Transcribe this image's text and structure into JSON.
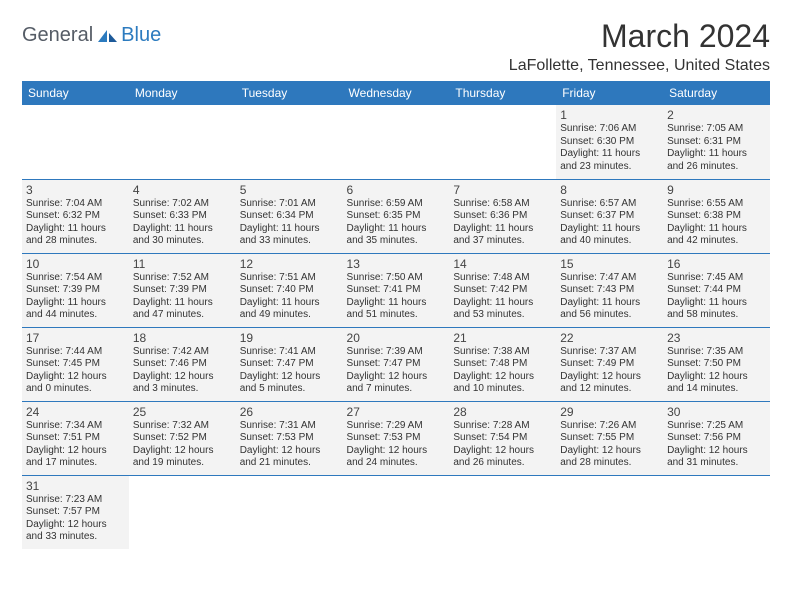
{
  "brand": {
    "part1": "General",
    "part2": "Blue"
  },
  "title": "March 2024",
  "location": "LaFollette, Tennessee, United States",
  "colors": {
    "header_bg": "#2e78bd",
    "header_text": "#ffffff",
    "cell_bg": "#f3f3f3",
    "border": "#2e78bd",
    "text": "#333333",
    "brand_gray": "#555c66",
    "brand_blue": "#2c7bbf"
  },
  "columns": [
    "Sunday",
    "Monday",
    "Tuesday",
    "Wednesday",
    "Thursday",
    "Friday",
    "Saturday"
  ],
  "weeks": [
    [
      null,
      null,
      null,
      null,
      null,
      {
        "d": "1",
        "sr": "7:06 AM",
        "ss": "6:30 PM",
        "dl": "11 hours and 23 minutes."
      },
      {
        "d": "2",
        "sr": "7:05 AM",
        "ss": "6:31 PM",
        "dl": "11 hours and 26 minutes."
      }
    ],
    [
      {
        "d": "3",
        "sr": "7:04 AM",
        "ss": "6:32 PM",
        "dl": "11 hours and 28 minutes."
      },
      {
        "d": "4",
        "sr": "7:02 AM",
        "ss": "6:33 PM",
        "dl": "11 hours and 30 minutes."
      },
      {
        "d": "5",
        "sr": "7:01 AM",
        "ss": "6:34 PM",
        "dl": "11 hours and 33 minutes."
      },
      {
        "d": "6",
        "sr": "6:59 AM",
        "ss": "6:35 PM",
        "dl": "11 hours and 35 minutes."
      },
      {
        "d": "7",
        "sr": "6:58 AM",
        "ss": "6:36 PM",
        "dl": "11 hours and 37 minutes."
      },
      {
        "d": "8",
        "sr": "6:57 AM",
        "ss": "6:37 PM",
        "dl": "11 hours and 40 minutes."
      },
      {
        "d": "9",
        "sr": "6:55 AM",
        "ss": "6:38 PM",
        "dl": "11 hours and 42 minutes."
      }
    ],
    [
      {
        "d": "10",
        "sr": "7:54 AM",
        "ss": "7:39 PM",
        "dl": "11 hours and 44 minutes."
      },
      {
        "d": "11",
        "sr": "7:52 AM",
        "ss": "7:39 PM",
        "dl": "11 hours and 47 minutes."
      },
      {
        "d": "12",
        "sr": "7:51 AM",
        "ss": "7:40 PM",
        "dl": "11 hours and 49 minutes."
      },
      {
        "d": "13",
        "sr": "7:50 AM",
        "ss": "7:41 PM",
        "dl": "11 hours and 51 minutes."
      },
      {
        "d": "14",
        "sr": "7:48 AM",
        "ss": "7:42 PM",
        "dl": "11 hours and 53 minutes."
      },
      {
        "d": "15",
        "sr": "7:47 AM",
        "ss": "7:43 PM",
        "dl": "11 hours and 56 minutes."
      },
      {
        "d": "16",
        "sr": "7:45 AM",
        "ss": "7:44 PM",
        "dl": "11 hours and 58 minutes."
      }
    ],
    [
      {
        "d": "17",
        "sr": "7:44 AM",
        "ss": "7:45 PM",
        "dl": "12 hours and 0 minutes."
      },
      {
        "d": "18",
        "sr": "7:42 AM",
        "ss": "7:46 PM",
        "dl": "12 hours and 3 minutes."
      },
      {
        "d": "19",
        "sr": "7:41 AM",
        "ss": "7:47 PM",
        "dl": "12 hours and 5 minutes."
      },
      {
        "d": "20",
        "sr": "7:39 AM",
        "ss": "7:47 PM",
        "dl": "12 hours and 7 minutes."
      },
      {
        "d": "21",
        "sr": "7:38 AM",
        "ss": "7:48 PM",
        "dl": "12 hours and 10 minutes."
      },
      {
        "d": "22",
        "sr": "7:37 AM",
        "ss": "7:49 PM",
        "dl": "12 hours and 12 minutes."
      },
      {
        "d": "23",
        "sr": "7:35 AM",
        "ss": "7:50 PM",
        "dl": "12 hours and 14 minutes."
      }
    ],
    [
      {
        "d": "24",
        "sr": "7:34 AM",
        "ss": "7:51 PM",
        "dl": "12 hours and 17 minutes."
      },
      {
        "d": "25",
        "sr": "7:32 AM",
        "ss": "7:52 PM",
        "dl": "12 hours and 19 minutes."
      },
      {
        "d": "26",
        "sr": "7:31 AM",
        "ss": "7:53 PM",
        "dl": "12 hours and 21 minutes."
      },
      {
        "d": "27",
        "sr": "7:29 AM",
        "ss": "7:53 PM",
        "dl": "12 hours and 24 minutes."
      },
      {
        "d": "28",
        "sr": "7:28 AM",
        "ss": "7:54 PM",
        "dl": "12 hours and 26 minutes."
      },
      {
        "d": "29",
        "sr": "7:26 AM",
        "ss": "7:55 PM",
        "dl": "12 hours and 28 minutes."
      },
      {
        "d": "30",
        "sr": "7:25 AM",
        "ss": "7:56 PM",
        "dl": "12 hours and 31 minutes."
      }
    ],
    [
      {
        "d": "31",
        "sr": "7:23 AM",
        "ss": "7:57 PM",
        "dl": "12 hours and 33 minutes."
      },
      null,
      null,
      null,
      null,
      null,
      null
    ]
  ],
  "labels": {
    "sunrise": "Sunrise: ",
    "sunset": "Sunset: ",
    "daylight": "Daylight: "
  }
}
